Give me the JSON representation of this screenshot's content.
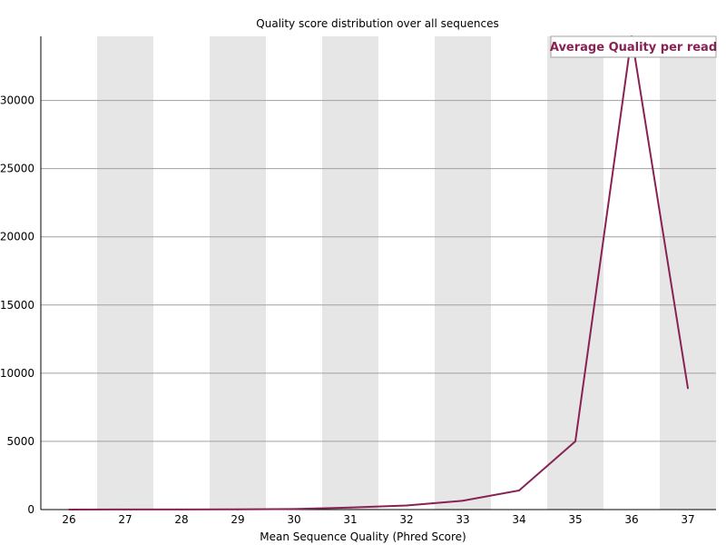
{
  "chart_data": {
    "type": "line",
    "title": "Quality score distribution over all sequences",
    "xlabel": "Mean Sequence Quality (Phred Score)",
    "ylabel": "",
    "categories": [
      "26",
      "27",
      "28",
      "29",
      "30",
      "31",
      "32",
      "33",
      "34",
      "35",
      "36",
      "37"
    ],
    "series": [
      {
        "name": "Average Quality per read",
        "values": [
          2,
          5,
          10,
          20,
          40,
          150,
          300,
          650,
          1400,
          5000,
          34700,
          8900
        ]
      }
    ],
    "y_ticks": [
      0,
      5000,
      10000,
      15000,
      20000,
      25000,
      30000
    ],
    "ylim": [
      0,
      34700
    ],
    "grid": true,
    "alternating_column_shading": true,
    "legend_position": "top-right",
    "colors": {
      "line": "#882255",
      "shade": "#e6e6e6",
      "grid": "#a0a0a0",
      "axis": "#000000"
    }
  }
}
